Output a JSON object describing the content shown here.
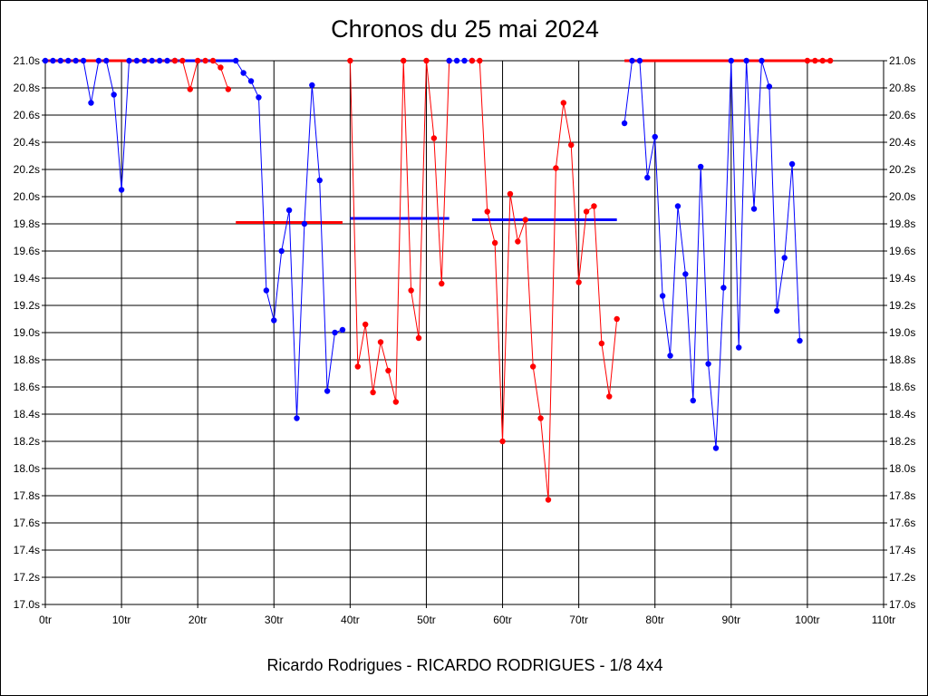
{
  "chart_data": {
    "type": "line",
    "title": "Chronos du 25 mai 2024",
    "subtitle": "Ricardo Rodrigues - RICARDO RODRIGUES - 1/8 4x4",
    "xlim": [
      0,
      110
    ],
    "ylim": [
      17.0,
      21.0
    ],
    "x_ticks": [
      "0tr",
      "10tr",
      "20tr",
      "30tr",
      "40tr",
      "50tr",
      "60tr",
      "70tr",
      "80tr",
      "90tr",
      "100tr",
      "110tr"
    ],
    "y_ticks": [
      "21.0s",
      "20.8s",
      "20.6s",
      "20.4s",
      "20.2s",
      "20.0s",
      "19.8s",
      "19.6s",
      "19.4s",
      "19.2s",
      "19.0s",
      "18.8s",
      "18.6s",
      "18.4s",
      "18.2s",
      "18.0s",
      "17.8s",
      "17.6s",
      "17.4s",
      "17.2s",
      "17.0s"
    ],
    "grid": true,
    "colors": {
      "blue": "#0000ff",
      "red": "#ff0000",
      "grid": "#000000"
    },
    "series": [
      {
        "color": "#0000ff",
        "points": [
          [
            0,
            21.0
          ],
          [
            1,
            21.0
          ],
          [
            2,
            21.0
          ],
          [
            3,
            21.0
          ],
          [
            4,
            21.0
          ],
          [
            5,
            21.0
          ],
          [
            6,
            20.69
          ],
          [
            7,
            21.0
          ],
          [
            8,
            21.0
          ],
          [
            9,
            20.75
          ],
          [
            10,
            20.05
          ],
          [
            11,
            21.0
          ],
          [
            12,
            21.0
          ],
          [
            13,
            21.0
          ],
          [
            14,
            21.0
          ],
          [
            15,
            21.0
          ],
          [
            16,
            21.0
          ],
          [
            17,
            21.0
          ]
        ]
      },
      {
        "color": "#ff0000",
        "points": [
          [
            17,
            21.0
          ],
          [
            18,
            21.0
          ],
          [
            19,
            20.79
          ],
          [
            20,
            21.0
          ],
          [
            21,
            21.0
          ],
          [
            22,
            21.0
          ],
          [
            23,
            20.95
          ],
          [
            24,
            20.79
          ]
        ]
      },
      {
        "color": "#0000ff",
        "points": [
          [
            25,
            21.0
          ],
          [
            26,
            20.91
          ],
          [
            27,
            20.85
          ],
          [
            28,
            20.73
          ],
          [
            29,
            19.31
          ],
          [
            30,
            19.09
          ],
          [
            31,
            19.6
          ],
          [
            32,
            19.9
          ],
          [
            33,
            18.37
          ],
          [
            34,
            19.8
          ],
          [
            35,
            20.82
          ],
          [
            36,
            20.12
          ],
          [
            37,
            18.57
          ],
          [
            38,
            19.0
          ],
          [
            39,
            19.02
          ]
        ]
      },
      {
        "color": "#ff0000",
        "points": [
          [
            40,
            21.0
          ],
          [
            41,
            18.75
          ],
          [
            42,
            19.06
          ],
          [
            43,
            18.56
          ],
          [
            44,
            18.93
          ],
          [
            45,
            18.72
          ],
          [
            46,
            18.49
          ],
          [
            47,
            21.0
          ],
          [
            48,
            19.31
          ],
          [
            49,
            18.96
          ],
          [
            50,
            21.0
          ],
          [
            51,
            20.43
          ],
          [
            52,
            19.36
          ],
          [
            53,
            21.0
          ]
        ]
      },
      {
        "color": "#0000ff",
        "points": [
          [
            53,
            21.0
          ],
          [
            54,
            21.0
          ],
          [
            55,
            21.0
          ],
          [
            56,
            21.0
          ]
        ]
      },
      {
        "color": "#ff0000",
        "points": [
          [
            56,
            21.0
          ],
          [
            57,
            21.0
          ],
          [
            58,
            19.89
          ],
          [
            59,
            19.66
          ],
          [
            60,
            18.2
          ],
          [
            61,
            20.02
          ],
          [
            62,
            19.67
          ],
          [
            63,
            19.83
          ],
          [
            64,
            18.75
          ],
          [
            65,
            18.37
          ],
          [
            66,
            17.77
          ],
          [
            67,
            20.21
          ],
          [
            68,
            20.69
          ],
          [
            69,
            20.38
          ],
          [
            70,
            19.37
          ],
          [
            71,
            19.89
          ],
          [
            72,
            19.93
          ],
          [
            73,
            18.92
          ],
          [
            74,
            18.53
          ],
          [
            75,
            19.1
          ]
        ]
      },
      {
        "color": "#0000ff",
        "points": [
          [
            76,
            20.54
          ],
          [
            77,
            21.0
          ],
          [
            78,
            21.0
          ],
          [
            79,
            20.14
          ],
          [
            80,
            20.44
          ],
          [
            81,
            19.27
          ],
          [
            82,
            18.83
          ],
          [
            83,
            19.93
          ],
          [
            84,
            19.43
          ],
          [
            85,
            18.5
          ],
          [
            86,
            20.22
          ],
          [
            87,
            18.77
          ],
          [
            88,
            18.15
          ],
          [
            89,
            19.33
          ],
          [
            90,
            21.0
          ],
          [
            91,
            18.89
          ],
          [
            92,
            21.0
          ],
          [
            93,
            19.91
          ],
          [
            94,
            21.0
          ],
          [
            95,
            20.81
          ],
          [
            96,
            19.16
          ],
          [
            97,
            19.55
          ],
          [
            98,
            20.24
          ],
          [
            99,
            18.94
          ]
        ]
      },
      {
        "color": "#ff0000",
        "points": [
          [
            100,
            21.0
          ],
          [
            101,
            21.0
          ],
          [
            102,
            21.0
          ],
          [
            103,
            21.0
          ]
        ]
      }
    ],
    "averages": [
      {
        "color": "#ff0000",
        "x": [
          0,
          24
        ],
        "y": 21.0
      },
      {
        "color": "#0000ff",
        "x": [
          17,
          25
        ],
        "y": 21.0
      },
      {
        "color": "#ff0000",
        "x": [
          25,
          39
        ],
        "y": 19.81
      },
      {
        "color": "#0000ff",
        "x": [
          40,
          53
        ],
        "y": 19.84
      },
      {
        "color": "#0000ff",
        "x": [
          56,
          75
        ],
        "y": 19.83
      },
      {
        "color": "#ff0000",
        "x": [
          76,
          103
        ],
        "y": 21.0
      }
    ]
  }
}
